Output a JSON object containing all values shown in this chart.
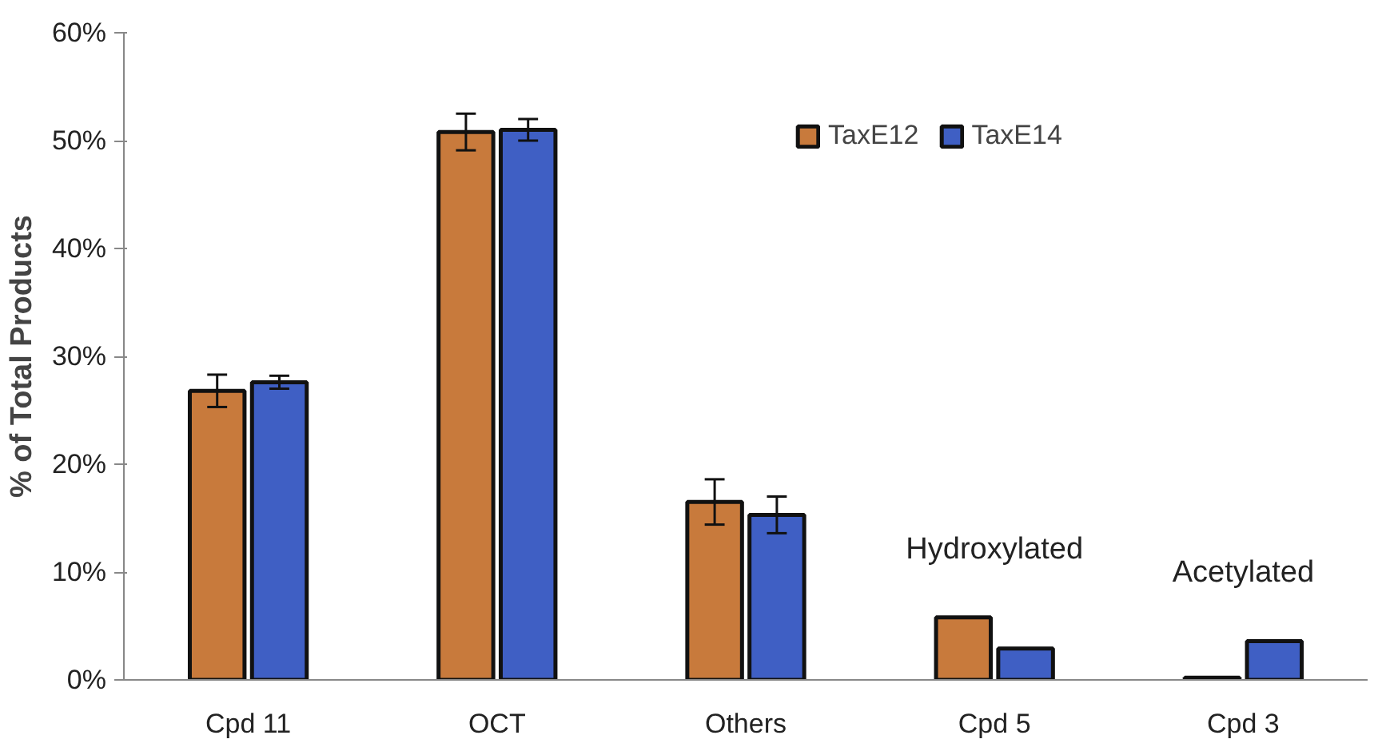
{
  "chart_data": {
    "type": "bar",
    "ylabel": "% of Total Products",
    "categories": [
      "Cpd 11",
      "OCT",
      "Others",
      "Cpd 5",
      "Cpd 3"
    ],
    "series": [
      {
        "name": "TaxE12",
        "color": "#c87a3c",
        "values": [
          26.8,
          50.8,
          16.5,
          5.8,
          0.2
        ],
        "errors": [
          1.5,
          1.7,
          2.1,
          null,
          null
        ]
      },
      {
        "name": "TaxE14",
        "color": "#3f5fc4",
        "values": [
          27.6,
          51.0,
          15.3,
          2.9,
          3.6
        ],
        "errors": [
          0.6,
          1.0,
          1.7,
          null,
          null
        ]
      }
    ],
    "ylim": [
      0,
      60
    ],
    "yticks": [
      {
        "value": 0,
        "label": "0%"
      },
      {
        "value": 10,
        "label": "10%"
      },
      {
        "value": 20,
        "label": "20%"
      },
      {
        "value": 30,
        "label": "30%"
      },
      {
        "value": 40,
        "label": "40%"
      },
      {
        "value": 50,
        "label": "50%"
      },
      {
        "value": 60,
        "label": "60%"
      }
    ],
    "annotations": [
      "Hydroxylated",
      "Acetylated"
    ],
    "legend": "top",
    "grid": false
  }
}
